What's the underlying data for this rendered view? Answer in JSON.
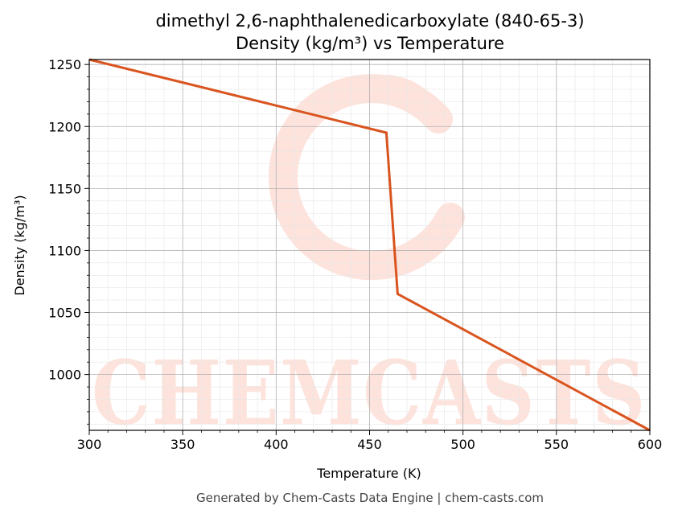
{
  "chart_data": {
    "type": "line",
    "title": "dimethyl 2,6-naphthalenedicarboxylate (840-65-3)",
    "subtitle": "Density (kg/m³) vs Temperature",
    "xlabel": "Temperature (K)",
    "ylabel": "Density (kg/m³)",
    "xlim": [
      300,
      600
    ],
    "ylim": [
      955,
      1254
    ],
    "xticks": [
      300,
      350,
      400,
      450,
      500,
      550,
      600
    ],
    "yticks": [
      1000,
      1050,
      1100,
      1150,
      1200,
      1250
    ],
    "grid": true,
    "legend": "none",
    "series": [
      {
        "color": "#d9541e",
        "points": [
          [
            300,
            1254
          ],
          [
            459,
            1195
          ],
          [
            465,
            1065
          ],
          [
            600,
            955
          ]
        ]
      }
    ],
    "watermark": "CHEMCASTS"
  },
  "footer": "Generated by Chem-Casts Data Engine | chem-casts.com",
  "colors": {
    "line": "#d9541e",
    "watermark": "#fde3dc",
    "grid_major": "#b0b0b0",
    "grid_minor": "#e6e6e6"
  }
}
